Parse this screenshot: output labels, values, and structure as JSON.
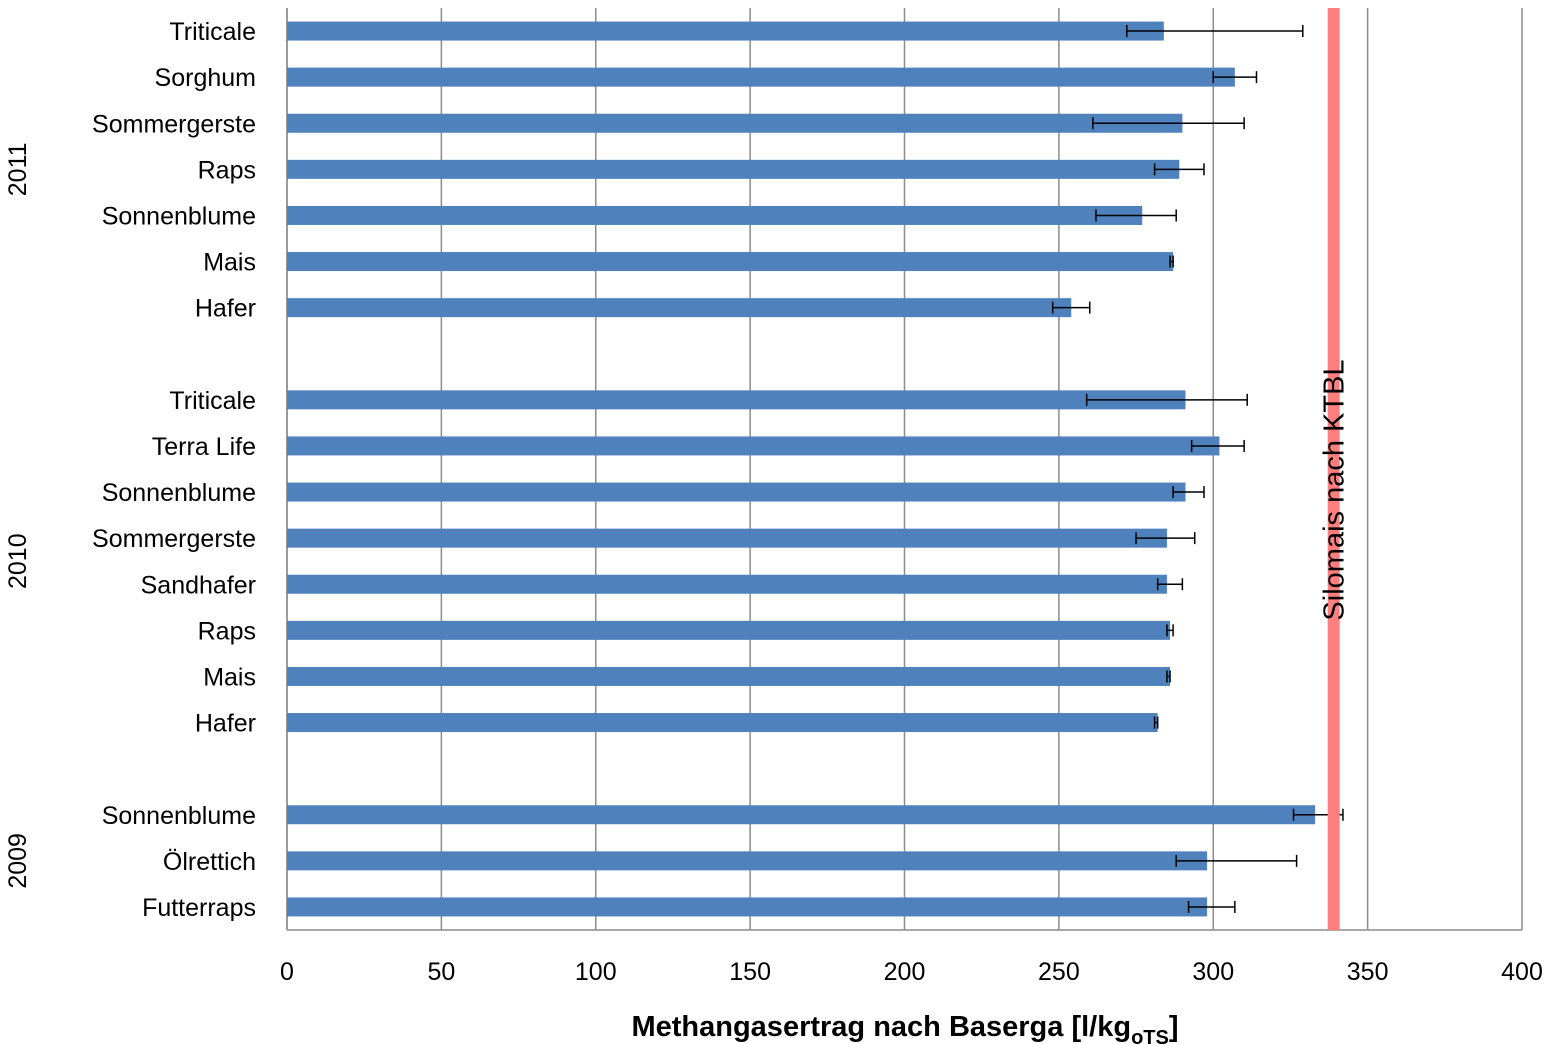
{
  "chart_data": {
    "type": "bar",
    "orientation": "horizontal",
    "xlabel": {
      "main": "Methangasertrag nach Baserga [l/kg",
      "subscript": "oTS",
      "suffix": "]"
    },
    "xlim": [
      0,
      400
    ],
    "xticks": [
      0,
      50,
      100,
      150,
      200,
      250,
      300,
      350,
      400
    ],
    "grid": true,
    "bar_color": "#4F81BD",
    "reference_line": {
      "label": "Silomais nach KTBL",
      "value": 339,
      "color": "#FF7F7F"
    },
    "groups": [
      {
        "name": "2011",
        "categories": [
          "Triticale",
          "Sorghum",
          "Sommergerste",
          "Raps",
          "Sonnenblume",
          "Mais",
          "Hafer"
        ],
        "values": [
          284,
          307,
          290,
          289,
          277,
          287,
          254
        ],
        "error_low": [
          272,
          300,
          261,
          281,
          262,
          286,
          248
        ],
        "error_high": [
          329,
          314,
          310,
          297,
          288,
          287,
          260
        ]
      },
      {
        "name": "2010",
        "categories": [
          "Triticale",
          "Terra Life",
          "Sonnenblume",
          "Sommergerste",
          "Sandhafer",
          "Raps",
          "Mais",
          "Hafer"
        ],
        "values": [
          291,
          302,
          291,
          285,
          285,
          286,
          286,
          282
        ],
        "error_low": [
          259,
          293,
          287,
          275,
          282,
          285,
          285,
          281
        ],
        "error_high": [
          311,
          310,
          297,
          294,
          290,
          287,
          286,
          282
        ]
      },
      {
        "name": "2009",
        "categories": [
          "Sonnenblume",
          "Ölrettich",
          "Futterraps"
        ],
        "values": [
          333,
          298,
          298
        ],
        "error_low": [
          326,
          288,
          292
        ],
        "error_high": [
          342,
          327,
          307
        ]
      }
    ]
  }
}
